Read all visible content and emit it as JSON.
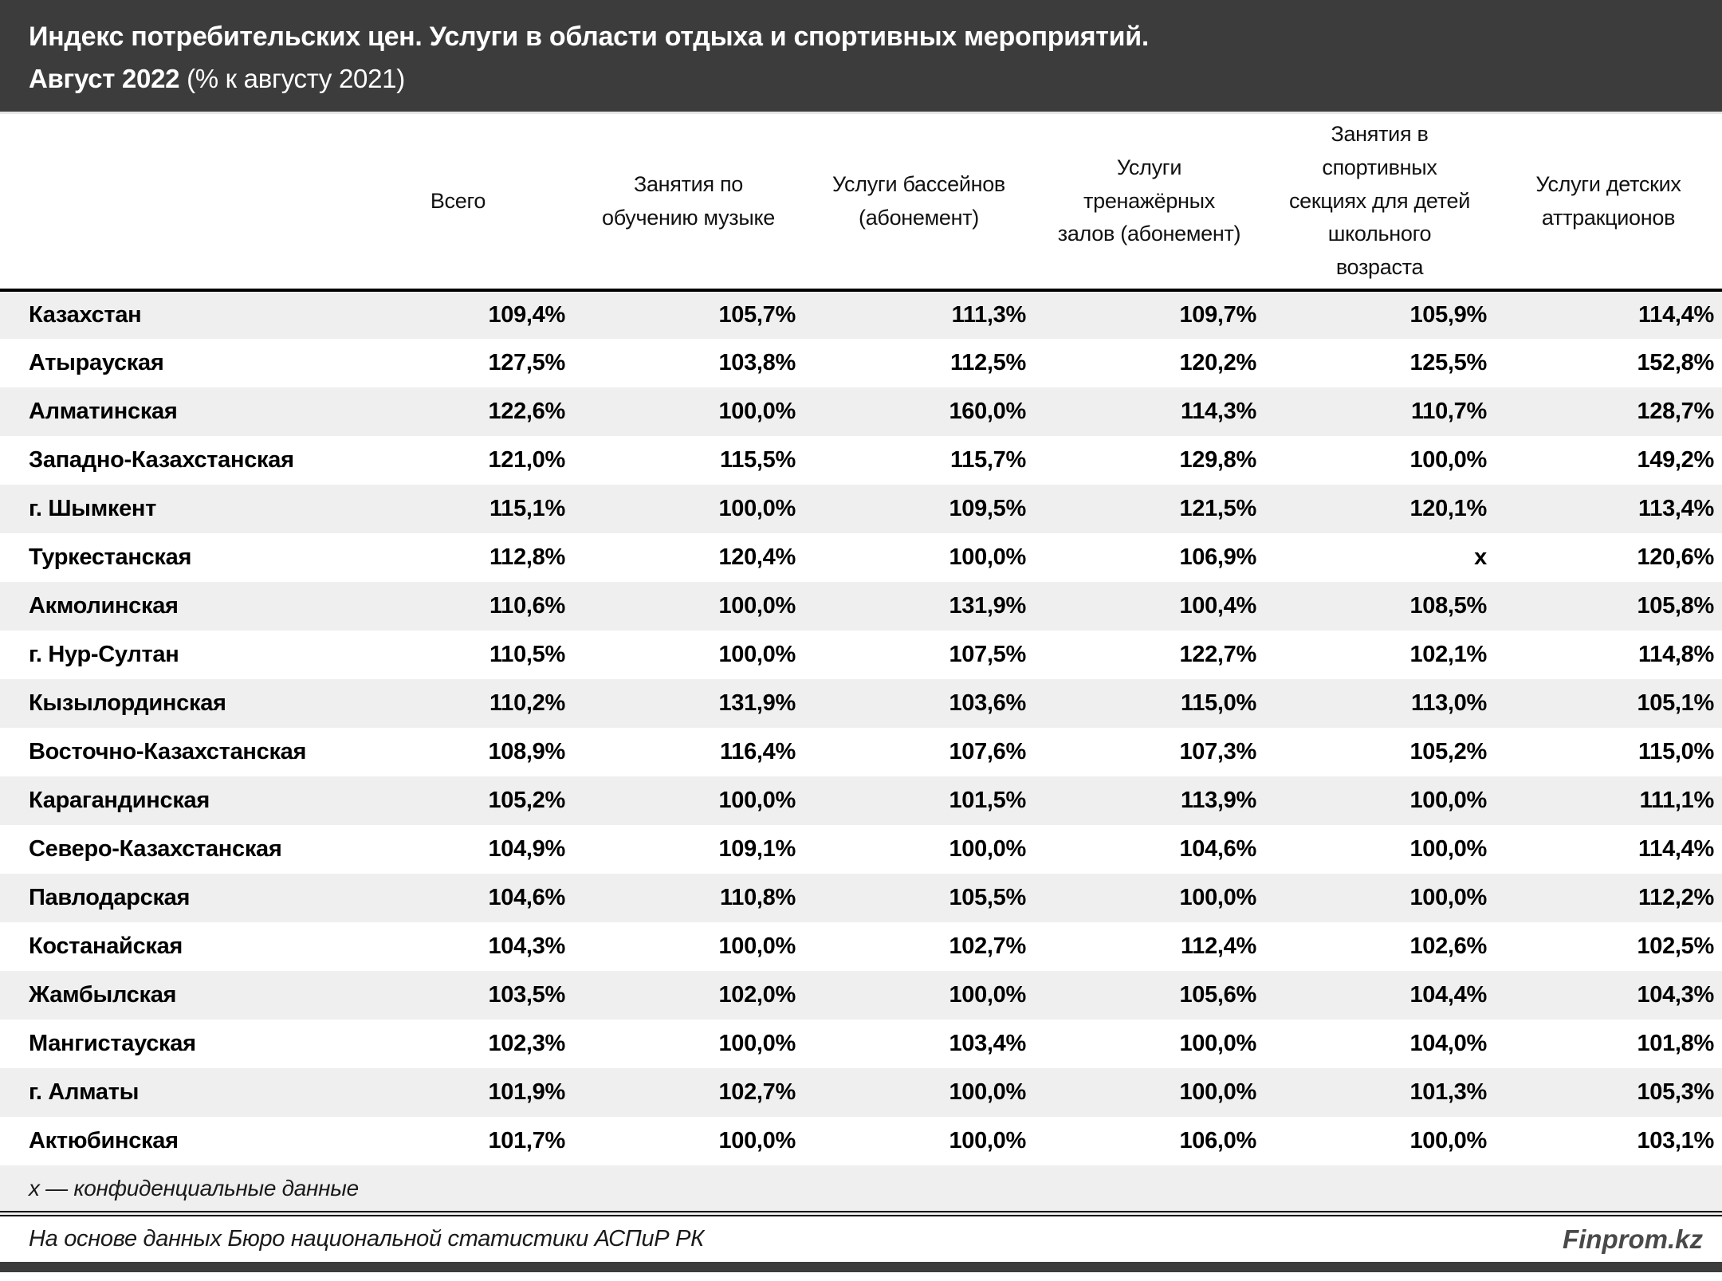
{
  "title": {
    "line1": "Индекс потребительских цен. Услуги в области отдыха и спортивных мероприятий.",
    "line2_bold": "Август 2022",
    "line2_rest": " (% к августу 2021)"
  },
  "chart_data": {
    "type": "table",
    "title": "Индекс потребительских цен. Услуги в области отдыха и спортивных мероприятий. Август 2022 (% к августу 2021)",
    "region_header": "",
    "columns": [
      "Всего",
      "Занятия по обучению музыке",
      "Услуги бассейнов (абонемент)",
      "Услуги тренажёрных залов (абонемент)",
      "Занятия в спортивных секциях для детей школьного возраста",
      "Услуги детских аттракционов"
    ],
    "rows": [
      {
        "region": "Казахстан",
        "values": [
          "109,4%",
          "105,7%",
          "111,3%",
          "109,7%",
          "105,9%",
          "114,4%"
        ]
      },
      {
        "region": "Атырауская",
        "values": [
          "127,5%",
          "103,8%",
          "112,5%",
          "120,2%",
          "125,5%",
          "152,8%"
        ]
      },
      {
        "region": "Алматинская",
        "values": [
          "122,6%",
          "100,0%",
          "160,0%",
          "114,3%",
          "110,7%",
          "128,7%"
        ]
      },
      {
        "region": "Западно-Казахстанская",
        "values": [
          "121,0%",
          "115,5%",
          "115,7%",
          "129,8%",
          "100,0%",
          "149,2%"
        ]
      },
      {
        "region": "г. Шымкент",
        "values": [
          "115,1%",
          "100,0%",
          "109,5%",
          "121,5%",
          "120,1%",
          "113,4%"
        ]
      },
      {
        "region": "Туркестанская",
        "values": [
          "112,8%",
          "120,4%",
          "100,0%",
          "106,9%",
          "x",
          "120,6%"
        ]
      },
      {
        "region": "Акмолинская",
        "values": [
          "110,6%",
          "100,0%",
          "131,9%",
          "100,4%",
          "108,5%",
          "105,8%"
        ]
      },
      {
        "region": "г. Нур-Султан",
        "values": [
          "110,5%",
          "100,0%",
          "107,5%",
          "122,7%",
          "102,1%",
          "114,8%"
        ]
      },
      {
        "region": "Кызылординская",
        "values": [
          "110,2%",
          "131,9%",
          "103,6%",
          "115,0%",
          "113,0%",
          "105,1%"
        ]
      },
      {
        "region": "Восточно-Казахстанская",
        "values": [
          "108,9%",
          "116,4%",
          "107,6%",
          "107,3%",
          "105,2%",
          "115,0%"
        ]
      },
      {
        "region": "Карагандинская",
        "values": [
          "105,2%",
          "100,0%",
          "101,5%",
          "113,9%",
          "100,0%",
          "111,1%"
        ]
      },
      {
        "region": "Северо-Казахстанская",
        "values": [
          "104,9%",
          "109,1%",
          "100,0%",
          "104,6%",
          "100,0%",
          "114,4%"
        ]
      },
      {
        "region": "Павлодарская",
        "values": [
          "104,6%",
          "110,8%",
          "105,5%",
          "100,0%",
          "100,0%",
          "112,2%"
        ]
      },
      {
        "region": "Костанайская",
        "values": [
          "104,3%",
          "100,0%",
          "102,7%",
          "112,4%",
          "102,6%",
          "102,5%"
        ]
      },
      {
        "region": "Жамбылская",
        "values": [
          "103,5%",
          "102,0%",
          "100,0%",
          "105,6%",
          "104,4%",
          "104,3%"
        ]
      },
      {
        "region": "Мангистауская",
        "values": [
          "102,3%",
          "100,0%",
          "103,4%",
          "100,0%",
          "104,0%",
          "101,8%"
        ]
      },
      {
        "region": "г. Алматы",
        "values": [
          "101,9%",
          "102,7%",
          "100,0%",
          "100,0%",
          "101,3%",
          "105,3%"
        ]
      },
      {
        "region": "Актюбинская",
        "values": [
          "101,7%",
          "100,0%",
          "100,0%",
          "106,0%",
          "100,0%",
          "103,1%"
        ]
      }
    ],
    "confidential_marker": "x"
  },
  "footnote": {
    "text": "x — конфиденциальные данные"
  },
  "source": {
    "text": "На основе данных Бюро национальной статистики АСПиР РК"
  },
  "brand": {
    "text": "Finprom.kz"
  },
  "colors": {
    "header_bg": "#3c3c3c",
    "stripe": "#efefef",
    "row_white": "#ffffff",
    "border": "#000000",
    "title_text": "#ffffff"
  }
}
